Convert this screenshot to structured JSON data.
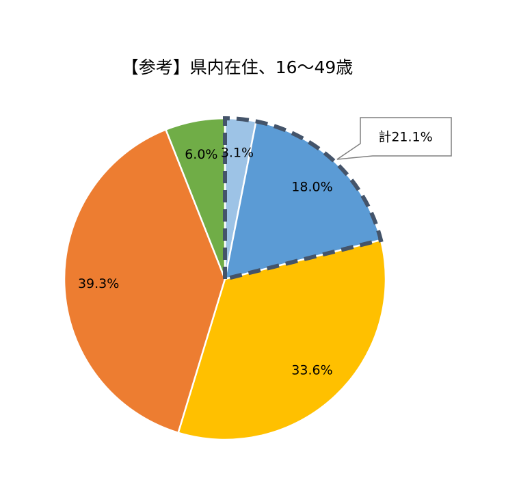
{
  "chart_data": {
    "type": "pie",
    "title": "【参考】県内在住、16～49歳",
    "values": [
      3.1,
      18.0,
      33.6,
      39.3,
      6.0
    ],
    "value_labels": [
      "3.1%",
      "18.0%",
      "33.6%",
      "39.3%",
      "6.0%"
    ],
    "colors": [
      "#9dc3e6",
      "#5b9bd5",
      "#ffc000",
      "#ed7d31",
      "#70ad47"
    ],
    "annotation": "計21.1%"
  }
}
